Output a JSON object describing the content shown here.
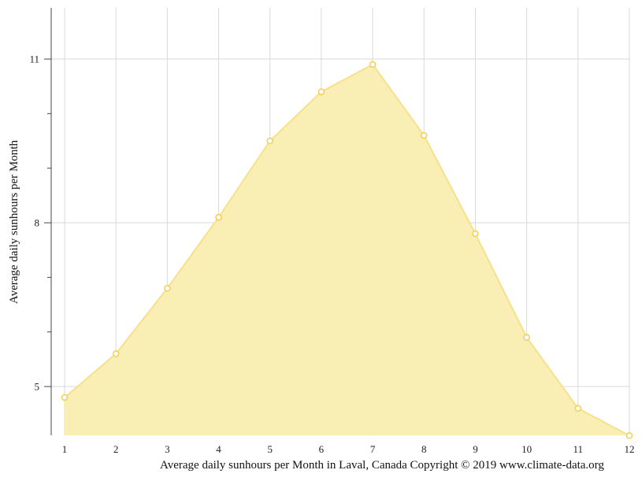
{
  "chart_data": {
    "type": "area",
    "title": "Average daily sunhours per Month in Laval, Canada Copyright © 2019 www.climate-data.org",
    "xlabel": "",
    "ylabel": "Average daily sunhours per Month",
    "categories": [
      "1",
      "2",
      "3",
      "4",
      "5",
      "6",
      "7",
      "8",
      "9",
      "10",
      "11",
      "12"
    ],
    "series": [
      {
        "name": "Average daily sunhours",
        "values": [
          4.8,
          5.6,
          6.8,
          8.1,
          9.5,
          10.4,
          10.9,
          9.6,
          7.8,
          5.9,
          4.6,
          4.1
        ]
      }
    ],
    "y_ticks": [
      5,
      8,
      11
    ],
    "y_minor_ticks": [
      6,
      7,
      9,
      10
    ],
    "ylim": [
      4.1,
      11.9
    ],
    "grid": true,
    "legend": "none",
    "colors": {
      "fill": "#f9eeb0",
      "line": "#f7e08a",
      "marker_stroke": "#f2cf50",
      "grid": "#d9d9d9",
      "axis": "#444444"
    }
  },
  "caption": "Average daily sunhours per Month in Laval, Canada Copyright © 2019 www.climate-data.org"
}
